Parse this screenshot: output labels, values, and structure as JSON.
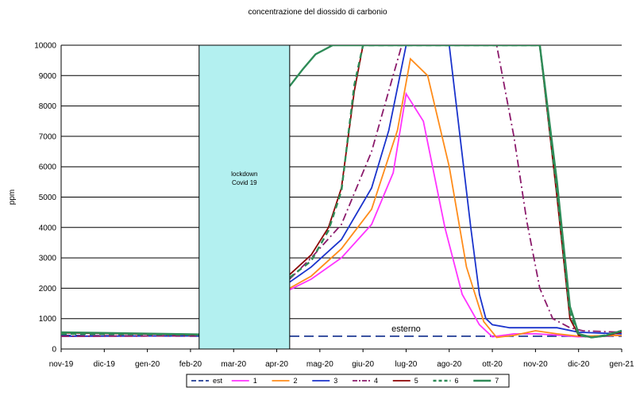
{
  "chart_data": {
    "type": "line",
    "title": "concentrazione del diossido di carbonio",
    "ylabel": "ppm",
    "xlabel": "",
    "ylim": [
      0,
      10000
    ],
    "yticks": [
      0,
      1000,
      2000,
      3000,
      4000,
      5000,
      6000,
      7000,
      8000,
      9000,
      10000
    ],
    "categories": [
      "nov-19",
      "dic-19",
      "gen-20",
      "feb-20",
      "mar-20",
      "apr-20",
      "mag-20",
      "giu-20",
      "lug-20",
      "ago-20",
      "ott-20",
      "nov-20",
      "dic-20",
      "gen-21"
    ],
    "grid": "horizontal",
    "legend_position": "bottom",
    "annotations": {
      "lockdown": {
        "text": "lockdown Covid 19",
        "x_start": 3.2,
        "x_end": 5.3,
        "fill": "#b3f0f0"
      },
      "esterno": {
        "text": "esterno"
      }
    },
    "series": [
      {
        "name": "est",
        "color": "#1f3a93",
        "dash": "long",
        "x": [
          0,
          3.2,
          5.3,
          13
        ],
        "y": [
          450,
          420,
          420,
          420
        ]
      },
      {
        "name": "1",
        "color": "#ff33ff",
        "dash": "solid",
        "x": [
          0,
          3.2,
          5.3,
          5.8,
          6.5,
          7.2,
          7.7,
          8.0,
          8.4,
          8.9,
          9.3,
          9.7,
          10.0,
          10.5,
          11.0,
          11.6,
          12.0,
          13.0
        ],
        "y": [
          420,
          430,
          1950,
          2300,
          3000,
          4100,
          5800,
          8400,
          7500,
          4000,
          1800,
          800,
          400,
          500,
          500,
          450,
          400,
          450
        ]
      },
      {
        "name": "2",
        "color": "#ff8c1a",
        "dash": "solid",
        "x": [
          0,
          3.2,
          5.3,
          5.8,
          6.5,
          7.2,
          7.8,
          8.1,
          8.5,
          9.0,
          9.4,
          9.8,
          10.1,
          10.5,
          11.0,
          11.5,
          12.0,
          13.0
        ],
        "y": [
          420,
          430,
          2000,
          2400,
          3300,
          4600,
          7200,
          9550,
          9000,
          6000,
          2700,
          900,
          380,
          450,
          600,
          500,
          420,
          450
        ]
      },
      {
        "name": "3",
        "color": "#1a33cc",
        "dash": "solid",
        "x": [
          0,
          3.2,
          5.3,
          5.8,
          6.5,
          7.2,
          7.6,
          8.0,
          9.0,
          9.5,
          9.7,
          9.85,
          10.0,
          10.4,
          11.0,
          11.5,
          12.0,
          13.0
        ],
        "y": [
          420,
          430,
          2200,
          2700,
          3600,
          5300,
          7200,
          10000,
          10000,
          4000,
          1800,
          1000,
          800,
          700,
          700,
          700,
          550,
          500
        ]
      },
      {
        "name": "4",
        "color": "#8b1a6b",
        "dash": "dashdot",
        "x": [
          0,
          3.2,
          5.3,
          5.8,
          6.5,
          7.2,
          7.6,
          7.9,
          10.1,
          10.5,
          10.8,
          11.1,
          11.4,
          11.8,
          12.1,
          13.0
        ],
        "y": [
          420,
          430,
          2300,
          3000,
          4100,
          6500,
          8500,
          10000,
          10000,
          7000,
          4200,
          2000,
          1000,
          700,
          600,
          550
        ]
      },
      {
        "name": "5",
        "color": "#8b0000",
        "dash": "solid",
        "x": [
          0,
          3.2,
          5.3,
          5.8,
          6.2,
          6.5,
          6.8,
          7.0,
          7.2,
          11.1,
          11.5,
          11.8,
          12.0,
          12.3,
          12.6,
          13.0
        ],
        "y": [
          530,
          470,
          2450,
          3100,
          4000,
          5300,
          8500,
          10000,
          10000,
          10000,
          5000,
          1000,
          450,
          380,
          420,
          560
        ]
      },
      {
        "name": "6",
        "color": "#2e8b57",
        "dash": "dashed",
        "x": [
          0,
          3.2,
          5.3,
          5.8,
          6.2,
          6.5,
          6.8,
          7.0,
          11.1,
          11.5,
          11.8,
          12.0,
          12.3,
          12.6,
          13.0
        ],
        "y": [
          500,
          470,
          2350,
          2900,
          3900,
          5200,
          8700,
          10000,
          10000,
          5200,
          1200,
          450,
          380,
          450,
          600
        ]
      },
      {
        "name": "7",
        "color": "#2e8b57",
        "dash": "solid",
        "x": [
          0,
          3.2,
          5.3,
          5.6,
          5.9,
          6.3,
          11.1,
          11.5,
          11.8,
          12.0,
          12.3,
          12.6,
          13.0
        ],
        "y": [
          550,
          480,
          8650,
          9200,
          9700,
          10000,
          10000,
          5500,
          1400,
          500,
          380,
          430,
          600
        ]
      }
    ]
  }
}
